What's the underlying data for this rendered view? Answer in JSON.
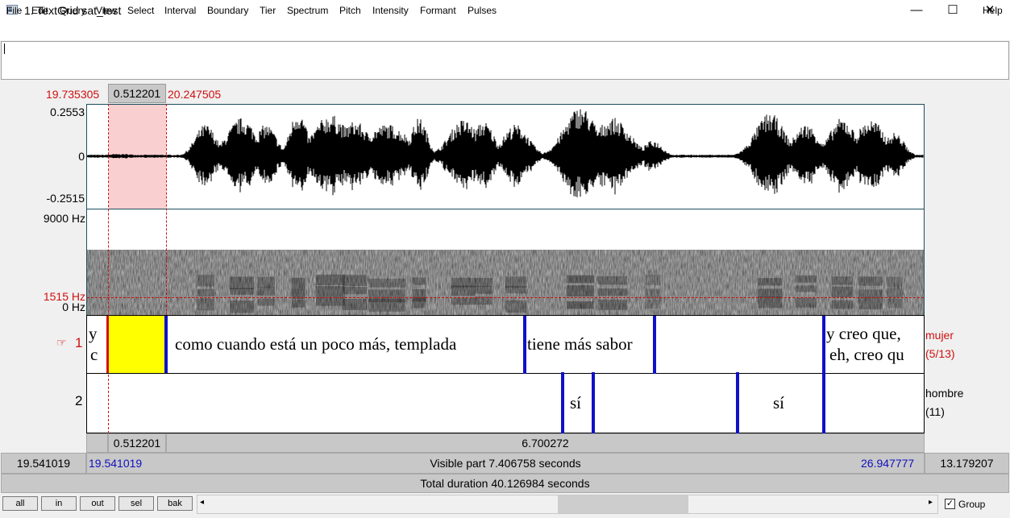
{
  "window": {
    "title": "1. TextGrid sat_test",
    "controls": {
      "minimize": "—",
      "maximize": "☐",
      "close": "✕"
    }
  },
  "menu": {
    "items": [
      "File",
      "Edit",
      "Query",
      "View",
      "Select",
      "Interval",
      "Boundary",
      "Tier",
      "Spectrum",
      "Pitch",
      "Intensity",
      "Formant",
      "Pulses"
    ],
    "help": "Help"
  },
  "text_entry": {
    "value": ""
  },
  "selection": {
    "start": "19.735305",
    "duration": "0.512201",
    "end": "20.247505"
  },
  "waveform": {
    "max_label": "0.2553",
    "zero_label": "0",
    "min_label": "-0.2515"
  },
  "spectrogram": {
    "top_label": "9000 Hz",
    "cursor_label": "1515 Hz",
    "bottom_label": "0 Hz"
  },
  "tiers": [
    {
      "number": "1",
      "pointer": "☞",
      "name": "mujer",
      "count": "(5/13)",
      "intervals": [
        {
          "text_line1": "y",
          "text_line2": "c"
        },
        {
          "text": ""
        },
        {
          "text": "como cuando está un poco más, templada"
        },
        {
          "text": "tiene más sabor"
        },
        {
          "text": ""
        },
        {
          "text_line1": "y creo que,",
          "text_line2": "eh, creo qu"
        }
      ]
    },
    {
      "number": "2",
      "name": "hombre",
      "count": "(11)",
      "intervals": [
        {
          "text": ""
        },
        {
          "text": "sí"
        },
        {
          "text": ""
        },
        {
          "text": "sí"
        },
        {
          "text": ""
        }
      ]
    }
  ],
  "bottom_bars": {
    "selection_duration": "0.512201",
    "after_selection_duration": "6.700272",
    "left_hidden": "19.541019",
    "visible_start": "19.541019",
    "visible_part": "Visible part 7.406758 seconds",
    "visible_end": "26.947777",
    "right_hidden": "13.179207",
    "total_duration": "Total duration 40.126984 seconds"
  },
  "buttons": {
    "all": "all",
    "in": "in",
    "out": "out",
    "sel": "sel",
    "bak": "bak"
  },
  "group": {
    "label": "Group",
    "checked": true,
    "check_glyph": "✓"
  },
  "scroll": {
    "left_arrow": "◂",
    "right_arrow": "▸"
  },
  "colors": {
    "selection_fill": "#f9cfcf",
    "selected_interval": "#ffff00",
    "boundary": "#1010c8",
    "marker_red": "#d01010",
    "panel_border": "#1e4d5e"
  }
}
